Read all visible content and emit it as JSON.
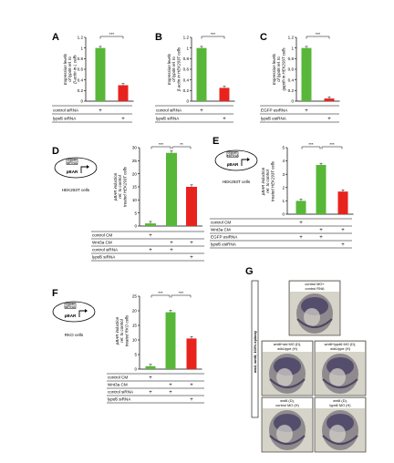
{
  "colors": {
    "green": "#58b738",
    "red": "#e8231e",
    "axis": "#000000"
  },
  "panels": {
    "A": {
      "letter": "A",
      "cell": "",
      "ylabel": [
        "Expression levels",
        "of lypd6 rel. to",
        "β-actin in L cells"
      ]
    },
    "B": {
      "letter": "B",
      "cell": "",
      "ylabel": [
        "Expression levels",
        "of lypd6 rel. to",
        "β-actin in HEK293T cells"
      ]
    },
    "C": {
      "letter": "C",
      "cell": "",
      "ylabel": [
        "Expression levels",
        "of lypd6 rel. to",
        "gapdh in HEK293T cells"
      ]
    },
    "D": {
      "letter": "D",
      "cell": "HEK293T cells",
      "ylabel": [
        "pBAR induction",
        "rel. to control",
        "treated HEK293T cells"
      ],
      "construct_top": [
        "lypd6",
        "siRNA"
      ],
      "construct_label": "pBAR"
    },
    "E": {
      "letter": "E",
      "cell": "HEK293T cells",
      "ylabel": [
        "pBAR induction",
        "rel. to control",
        "treated HEK293T cells"
      ],
      "construct_top": [
        "lypd6",
        "esiRNA"
      ],
      "construct_label": "pBAR"
    },
    "F": {
      "letter": "F",
      "cell": "RKO cells",
      "ylabel": [
        "pBAR induction",
        "rel. to control",
        "treated RKO cells"
      ],
      "construct_top": [
        "lypd6",
        "siRNA"
      ],
      "construct_label": "pBAR"
    },
    "G": {
      "letter": "G"
    }
  },
  "chart_data": [
    {
      "panel": "A",
      "type": "bar",
      "categories": [
        "control siRNA",
        "lypd6 siRNA"
      ],
      "values": [
        1.0,
        0.3
      ],
      "ylim": [
        0,
        1.2
      ],
      "yticks": [
        "0",
        "0.2",
        "0.4",
        "0.6",
        "0.8",
        "1",
        "1.2"
      ],
      "significance": [
        "***"
      ],
      "treatment_rows": [
        {
          "label": "control siRNA",
          "marks": [
            "+",
            ""
          ]
        },
        {
          "label": "lypd6 siRNA",
          "marks": [
            "",
            "+"
          ]
        }
      ]
    },
    {
      "panel": "B",
      "type": "bar",
      "categories": [
        "control siRNA",
        "lypd6 siRNA"
      ],
      "values": [
        1.0,
        0.25
      ],
      "ylim": [
        0,
        1.2
      ],
      "yticks": [
        "0",
        "0.2",
        "0.4",
        "0.6",
        "0.8",
        "1",
        "1.2"
      ],
      "significance": [
        "***"
      ],
      "treatment_rows": [
        {
          "label": "control siRNA",
          "marks": [
            "+",
            ""
          ]
        },
        {
          "label": "lypd6 siRNA",
          "marks": [
            "",
            "+"
          ]
        }
      ]
    },
    {
      "panel": "C",
      "type": "bar",
      "categories": [
        "EGFP esiRNA",
        "lypd6 esiRNA"
      ],
      "values": [
        1.0,
        0.05
      ],
      "ylim": [
        0,
        1.2
      ],
      "yticks": [
        "0",
        "0.2",
        "0.4",
        "0.6",
        "0.8",
        "1",
        "1.2"
      ],
      "significance": [
        "***"
      ],
      "treatment_rows": [
        {
          "label": "EGFP esiRNA",
          "marks": [
            "+",
            ""
          ]
        },
        {
          "label": "lypd6 esiRNA",
          "marks": [
            "",
            "+"
          ]
        }
      ]
    },
    {
      "panel": "D",
      "type": "bar",
      "categories": [
        "1",
        "2",
        "3"
      ],
      "values": [
        1.0,
        28.0,
        15.0
      ],
      "ylim": [
        0,
        30
      ],
      "yticks": [
        "0",
        "5",
        "10",
        "15",
        "20",
        "25",
        "30"
      ],
      "significance": [
        "***",
        "**"
      ],
      "treatment_rows": [
        {
          "label": "control CM",
          "marks": [
            "+",
            "",
            ""
          ]
        },
        {
          "label": "Wnt3a CM",
          "marks": [
            "",
            "+",
            "+"
          ]
        },
        {
          "label": "control siRNA",
          "marks": [
            "+",
            "+",
            ""
          ]
        },
        {
          "label": "lypd6 siRNA",
          "marks": [
            "",
            "",
            "+"
          ]
        }
      ]
    },
    {
      "panel": "E",
      "type": "bar",
      "categories": [
        "1",
        "2",
        "3"
      ],
      "values": [
        1.0,
        3.7,
        1.7
      ],
      "ylim": [
        0,
        5
      ],
      "yticks": [
        "0",
        "1",
        "2",
        "3",
        "4",
        "5"
      ],
      "significance": [
        "***",
        "***"
      ],
      "treatment_rows": [
        {
          "label": "control CM",
          "marks": [
            "+",
            "",
            ""
          ]
        },
        {
          "label": "Wnt3a CM",
          "marks": [
            "",
            "+",
            "+"
          ]
        },
        {
          "label": "EGFP esiRNA",
          "marks": [
            "+",
            "+",
            ""
          ]
        },
        {
          "label": "lypd6 esiRNA",
          "marks": [
            "",
            "",
            "+"
          ]
        }
      ]
    },
    {
      "panel": "F",
      "type": "bar",
      "categories": [
        "1",
        "2",
        "3"
      ],
      "values": [
        1.0,
        19.5,
        10.5
      ],
      "ylim": [
        0,
        25
      ],
      "yticks": [
        "0",
        "5",
        "10",
        "15",
        "20",
        "25"
      ],
      "significance": [
        "***",
        "***"
      ],
      "treatment_rows": [
        {
          "label": "control CM",
          "marks": [
            "+",
            "",
            ""
          ]
        },
        {
          "label": "Wnt3a CM",
          "marks": [
            "",
            "+",
            "+"
          ]
        },
        {
          "label": "control siRNA",
          "marks": [
            "+",
            "+",
            ""
          ]
        },
        {
          "label": "lypd6 siRNA",
          "marks": [
            "",
            "",
            "+"
          ]
        }
      ]
    }
  ],
  "embryos": {
    "side_label": [
      "otx2, wnt8; 100% epiboly"
    ],
    "cells": [
      {
        "label": [
          "control MO+",
          "control RNA"
        ],
        "pos": "top"
      },
      {
        "label": [
          "wnt8+std MO (D),",
          "wild-type (H)"
        ],
        "pos": "ml"
      },
      {
        "label": [
          "wnt8+lypd6 MO (D),",
          "wild-type (H)"
        ],
        "pos": "mr"
      },
      {
        "label": [
          "wnt8 (D),",
          "control MO (H)"
        ],
        "pos": "bl"
      },
      {
        "label": [
          "wnt8 (D),",
          "lypd6 MO (H)"
        ],
        "pos": "br"
      }
    ]
  }
}
